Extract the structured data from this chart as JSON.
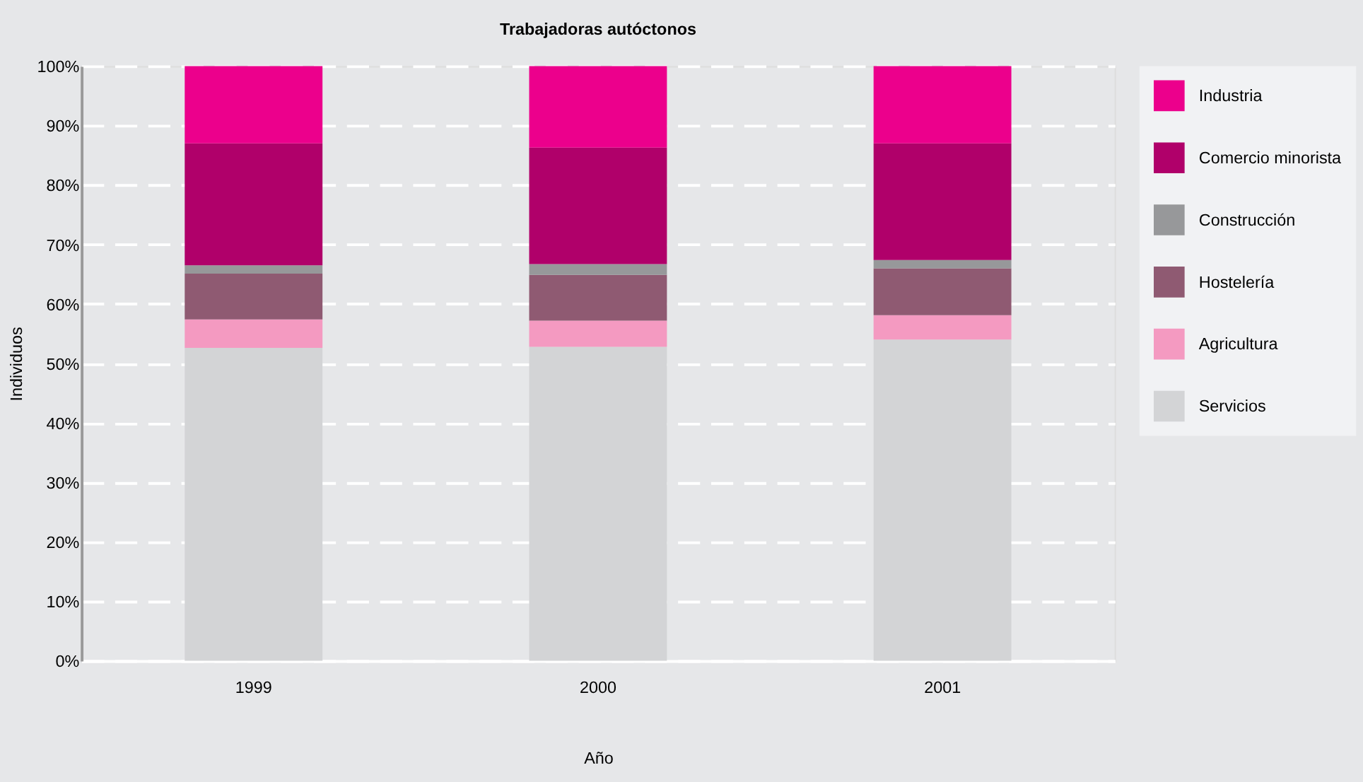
{
  "chart_data": {
    "type": "bar",
    "stacked": true,
    "title": "Trabajadoras autóctonos",
    "xlabel": "Año",
    "ylabel": "Individuos",
    "categories": [
      "1999",
      "2000",
      "2001"
    ],
    "series": [
      {
        "name": "Servicios",
        "color": "#d3d4d6",
        "values": [
          52.6,
          52.8,
          54.0
        ]
      },
      {
        "name": "Agricultura",
        "color": "#f49ac1",
        "values": [
          4.8,
          4.4,
          4.1
        ]
      },
      {
        "name": "Hostelería",
        "color": "#8f5a72",
        "values": [
          7.7,
          7.7,
          7.9
        ]
      },
      {
        "name": "Construcción",
        "color": "#97989a",
        "values": [
          1.4,
          1.8,
          1.4
        ]
      },
      {
        "name": "Comercio minorista",
        "color": "#b0006a",
        "values": [
          20.5,
          19.6,
          19.6
        ]
      },
      {
        "name": "Industria",
        "color": "#ec008c",
        "values": [
          13.0,
          13.7,
          13.0
        ]
      }
    ],
    "ylim": [
      0,
      100
    ],
    "yticks": [
      {
        "value": 0,
        "label": "0%"
      },
      {
        "value": 10,
        "label": "10%"
      },
      {
        "value": 20,
        "label": "20%"
      },
      {
        "value": 30,
        "label": "30%"
      },
      {
        "value": 40,
        "label": "40%"
      },
      {
        "value": 50,
        "label": "50%"
      },
      {
        "value": 60,
        "label": "60%"
      },
      {
        "value": 70,
        "label": "70%"
      },
      {
        "value": 80,
        "label": "80%"
      },
      {
        "value": 90,
        "label": "90%"
      },
      {
        "value": 100,
        "label": "100%"
      }
    ],
    "grid": "y",
    "legend": "top right"
  }
}
